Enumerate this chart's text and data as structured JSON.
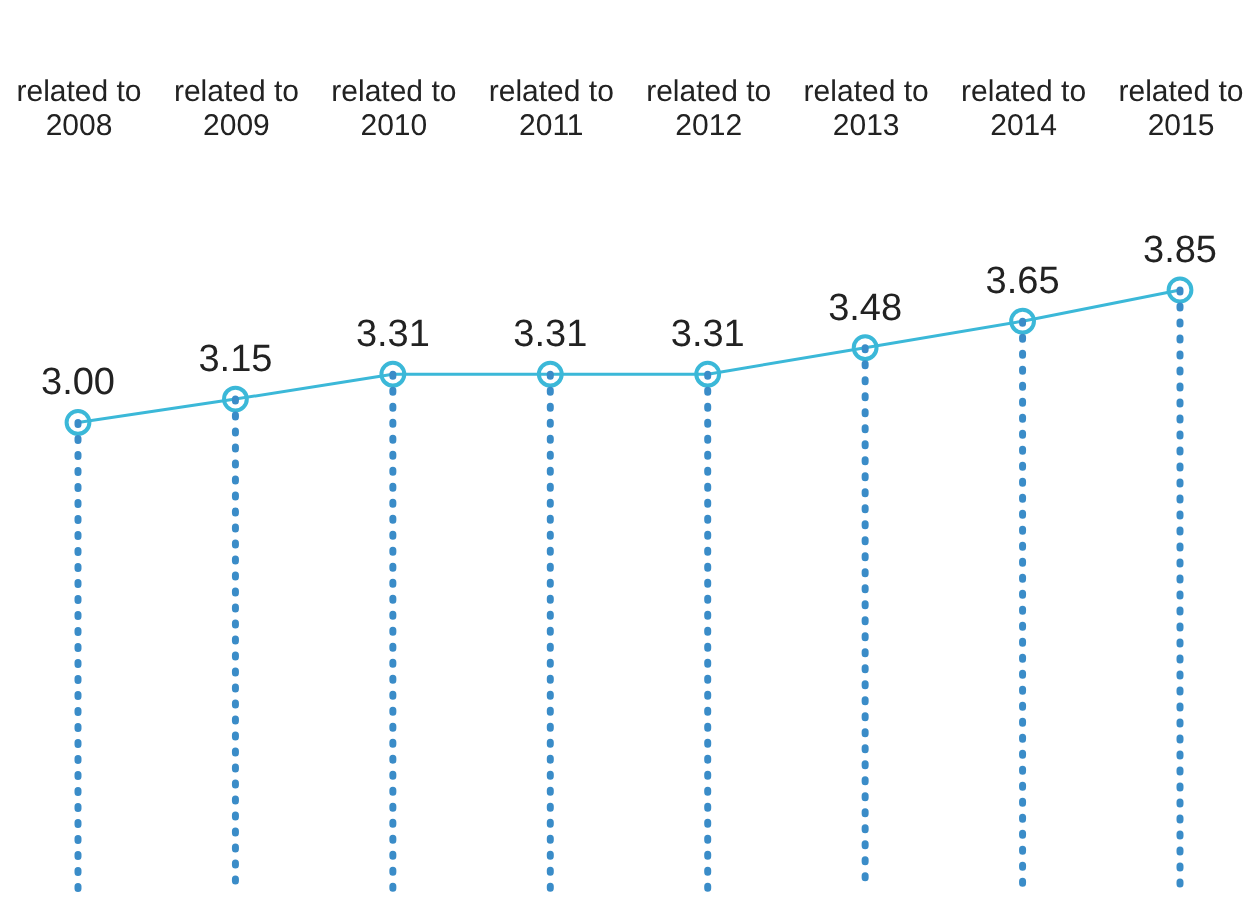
{
  "chart_data": {
    "type": "line",
    "categories": [
      "related to 2008",
      "related to 2009",
      "related to 2010",
      "related to 2011",
      "related to 2012",
      "related to 2013",
      "related to 2014",
      "related to 2015"
    ],
    "series": [
      {
        "color": "#3bb8d8",
        "values": [
          3.0,
          3.15,
          3.31,
          3.31,
          3.31,
          3.48,
          3.65,
          3.85
        ],
        "value_labels": [
          "3.00",
          "3.15",
          "3.31",
          "3.31",
          "3.31",
          "3.48",
          "3.65",
          "3.85"
        ]
      }
    ],
    "marker": "circle",
    "grid": "x"
  }
}
